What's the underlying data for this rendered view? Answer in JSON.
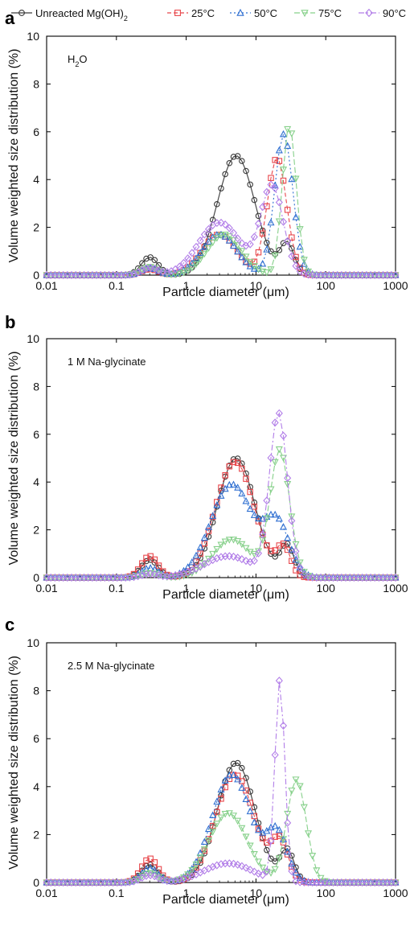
{
  "legend": {
    "items": [
      {
        "label": "Unreacted Mg(OH)",
        "sub": "2",
        "color": "#3a3a3a",
        "marker": "circle",
        "dash": ""
      },
      {
        "label": "25°C",
        "sub": "",
        "color": "#e8474c",
        "marker": "square",
        "dash": "5,3"
      },
      {
        "label": "50°C",
        "sub": "",
        "color": "#2f6fd1",
        "marker": "triangle-up",
        "dash": "2,3"
      },
      {
        "label": "75°C",
        "sub": "",
        "color": "#86d08a",
        "marker": "triangle-down",
        "dash": "7,3"
      },
      {
        "label": "90°C",
        "sub": "",
        "color": "#b27ee8",
        "marker": "diamond",
        "dash": "7,3,2,3"
      }
    ]
  },
  "x_ticks": [
    "0.01",
    "0.1",
    "1",
    "10",
    "100",
    "1000"
  ],
  "y_ticks": [
    "0",
    "2",
    "4",
    "6",
    "8",
    "10"
  ],
  "chart_data": [
    {
      "type": "line",
      "panel_letter": "a",
      "annotation": "H",
      "annotation_sub": "2",
      "annotation_tail": "O",
      "xlabel": "Particle diameter (μm)",
      "ylabel": "Volume weighted size distribution (%)",
      "xscale": "log",
      "xlim": [
        0.01,
        1000
      ],
      "ylim": [
        0,
        10
      ],
      "series": [
        {
          "name": "Unreacted Mg(OH)2",
          "peaks": [
            [
              0.3,
              0.75,
              0.12
            ],
            [
              5.2,
              5.0,
              0.27
            ],
            [
              28,
              1.3,
              0.1
            ]
          ]
        },
        {
          "name": "25°C",
          "peaks": [
            [
              0.3,
              0.25,
              0.12
            ],
            [
              3.0,
              1.7,
              0.25
            ],
            [
              20,
              4.9,
              0.14
            ]
          ]
        },
        {
          "name": "50°C",
          "peaks": [
            [
              0.3,
              0.3,
              0.12
            ],
            [
              3.0,
              1.7,
              0.25
            ],
            [
              25,
              5.9,
              0.13
            ]
          ]
        },
        {
          "name": "75°C",
          "peaks": [
            [
              0.3,
              0.35,
              0.12
            ],
            [
              3.5,
              1.7,
              0.25
            ],
            [
              30,
              6.3,
              0.1
            ]
          ]
        },
        {
          "name": "90°C",
          "peaks": [
            [
              0.3,
              0.3,
              0.12
            ],
            [
              3.0,
              2.2,
              0.3
            ],
            [
              17,
              3.7,
              0.16
            ]
          ]
        }
      ]
    },
    {
      "type": "line",
      "panel_letter": "b",
      "annotation": "1 M Na-glycinate",
      "annotation_sub": "",
      "annotation_tail": "",
      "xlabel": "Particle diameter (μm)",
      "ylabel": "Volume weighted size distribution (%)",
      "xscale": "log",
      "xlim": [
        0.01,
        1000
      ],
      "ylim": [
        0,
        10
      ],
      "series": [
        {
          "name": "Unreacted Mg(OH)2",
          "peaks": [
            [
              0.3,
              0.75,
              0.12
            ],
            [
              5.2,
              5.0,
              0.27
            ],
            [
              28,
              1.3,
              0.1
            ]
          ]
        },
        {
          "name": "25°C",
          "peaks": [
            [
              0.3,
              0.9,
              0.12
            ],
            [
              5.0,
              4.85,
              0.28
            ],
            [
              25,
              1.2,
              0.1
            ]
          ]
        },
        {
          "name": "50°C",
          "peaks": [
            [
              0.3,
              0.4,
              0.12
            ],
            [
              4.5,
              3.9,
              0.3
            ],
            [
              20,
              2.2,
              0.18
            ]
          ]
        },
        {
          "name": "75°C",
          "peaks": [
            [
              0.3,
              0.2,
              0.12
            ],
            [
              4.5,
              1.6,
              0.28
            ],
            [
              22,
              5.3,
              0.14
            ]
          ]
        },
        {
          "name": "90°C",
          "peaks": [
            [
              0.3,
              0.15,
              0.12
            ],
            [
              4.0,
              0.9,
              0.35
            ],
            [
              21,
              6.8,
              0.13
            ]
          ]
        }
      ]
    },
    {
      "type": "line",
      "panel_letter": "c",
      "annotation": "2.5 M Na-glycinate",
      "annotation_sub": "",
      "annotation_tail": "",
      "xlabel": "Particle diameter (μm)",
      "ylabel": "Volume weighted size distribution (%)",
      "xscale": "log",
      "xlim": [
        0.01,
        1000
      ],
      "ylim": [
        0,
        10
      ],
      "series": [
        {
          "name": "Unreacted Mg(OH)2",
          "peaks": [
            [
              0.3,
              0.75,
              0.12
            ],
            [
              5.2,
              5.0,
              0.27
            ],
            [
              28,
              1.3,
              0.1
            ]
          ]
        },
        {
          "name": "25°C",
          "peaks": [
            [
              0.3,
              1.0,
              0.12
            ],
            [
              5.0,
              4.5,
              0.28
            ],
            [
              22,
              1.6,
              0.12
            ]
          ]
        },
        {
          "name": "50°C",
          "peaks": [
            [
              0.3,
              0.6,
              0.12
            ],
            [
              4.5,
              4.5,
              0.28
            ],
            [
              20,
              2.0,
              0.15
            ]
          ]
        },
        {
          "name": "75°C",
          "peaks": [
            [
              0.3,
              0.4,
              0.12
            ],
            [
              4.0,
              2.9,
              0.28
            ],
            [
              38,
              4.3,
              0.14
            ]
          ]
        },
        {
          "name": "90°C",
          "peaks": [
            [
              0.3,
              0.3,
              0.12
            ],
            [
              4.0,
              0.8,
              0.35
            ],
            [
              22,
              8.4,
              0.07
            ]
          ]
        }
      ]
    }
  ]
}
